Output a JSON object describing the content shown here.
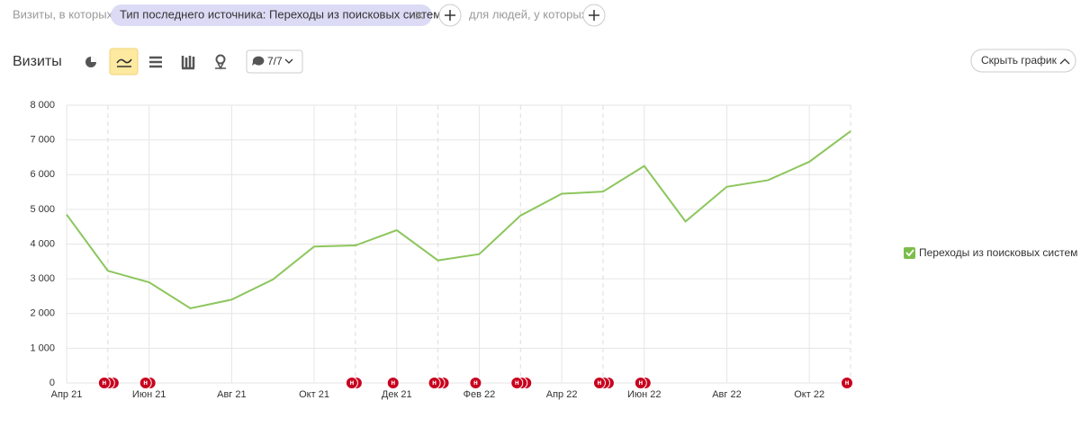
{
  "filter": {
    "prefix": "Визиты, в которых",
    "chip": "Тип последнего источника: Переходы из поисковых систем",
    "suffix": "для людей, у которых"
  },
  "toolbar": {
    "title": "Визиты",
    "comments": "7/7",
    "hide_button": "Скрыть график"
  },
  "chart_data": {
    "type": "line",
    "categories": [
      "Апр 21",
      null,
      "Июн 21",
      null,
      "Авг 21",
      null,
      "Окт 21",
      null,
      "Дек 21",
      null,
      "Фев 22",
      null,
      "Апр 22",
      null,
      "Июн 22",
      null,
      "Авг 22",
      null,
      "Окт 22",
      null
    ],
    "series": [
      {
        "name": "Переходы из поисковых систем",
        "color": "#8cc65c",
        "values": [
          4850,
          3230,
          2900,
          2150,
          2400,
          2980,
          3930,
          3960,
          4400,
          3530,
          3710,
          4820,
          5450,
          5510,
          6250,
          4650,
          5650,
          5840,
          6370,
          7250
        ]
      }
    ],
    "ylim": [
      0,
      8000
    ],
    "yticks": [
      0,
      {
        "value": 1000,
        "label": "1 000"
      },
      {
        "value": 2000,
        "label": "2 000"
      },
      {
        "value": 3000,
        "label": "3 000"
      },
      {
        "value": 4000,
        "label": "4 000"
      },
      {
        "value": 5000,
        "label": "5 000"
      },
      {
        "value": 6000,
        "label": "6 000"
      },
      {
        "value": 7000,
        "label": "7 000"
      },
      {
        "value": 8000,
        "label": "8 000"
      }
    ],
    "grid": true,
    "annotation_label": "н",
    "annotations": [
      {
        "index": 1,
        "count": 3
      },
      {
        "index": 2,
        "count": 2
      },
      {
        "index": 7,
        "count": 2
      },
      {
        "index": 8,
        "count": 1
      },
      {
        "index": 9,
        "count": 3
      },
      {
        "index": 10,
        "count": 1
      },
      {
        "index": 11,
        "count": 3
      },
      {
        "index": 13,
        "count": 3
      },
      {
        "index": 14,
        "count": 2
      },
      {
        "index": 19,
        "count": 1
      }
    ]
  }
}
